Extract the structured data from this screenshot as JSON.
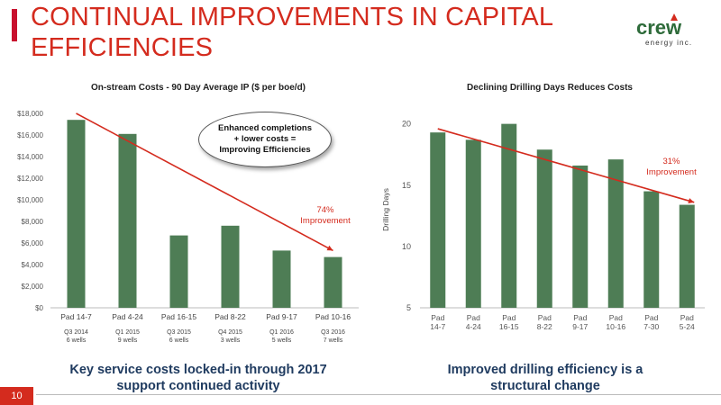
{
  "slide": {
    "title_line1": "CONTINUAL IMPROVEMENTS IN CAPITAL",
    "title_line2": "EFFICIENCIES",
    "page_number": "10",
    "logo_text": "crew",
    "logo_sub": "energy inc."
  },
  "colors": {
    "bar": "#4e7d55",
    "trend": "#d42b1e",
    "accent": "#d42b1e",
    "caption": "#1e3a5f"
  },
  "chart_data": [
    {
      "type": "bar",
      "title": "On-stream Costs - 90 Day Average IP ($ per boe/d)",
      "categories": [
        "Pad 14-7",
        "Pad 4-24",
        "Pad 16-15",
        "Pad 8-22",
        "Pad 9-17",
        "Pad 10-16"
      ],
      "sublabels": [
        [
          "Q3 2014",
          "6 wells"
        ],
        [
          "Q1 2015",
          "9 wells"
        ],
        [
          "Q3 2015",
          "6 wells"
        ],
        [
          "Q4 2015",
          "3 wells"
        ],
        [
          "Q1 2016",
          "5 wells"
        ],
        [
          "Q3 2016",
          "7 wells"
        ]
      ],
      "values": [
        17400,
        16100,
        6700,
        7600,
        5300,
        4700
      ],
      "ylim": [
        0,
        18000
      ],
      "yticks": [
        0,
        2000,
        4000,
        6000,
        8000,
        10000,
        12000,
        14000,
        16000,
        18000
      ],
      "ytick_labels": [
        "$0",
        "$2,000",
        "$4,000",
        "$6,000",
        "$8,000",
        "$10,000",
        "$12,000",
        "$14,000",
        "$16,000",
        "$18,000"
      ],
      "trend": {
        "from": 18000,
        "to": 5300
      },
      "callout": [
        "Enhanced completions",
        "+ lower costs =",
        "Improving Efficiencies"
      ],
      "improvement": [
        "74%",
        "Improvement"
      ],
      "caption": [
        "Key service costs locked-in through 2017",
        "support continued activity"
      ]
    },
    {
      "type": "bar",
      "title": "Declining Drilling Days Reduces Costs",
      "categories": [
        [
          "Pad",
          "14-7"
        ],
        [
          "Pad",
          "4-24"
        ],
        [
          "Pad",
          "16-15"
        ],
        [
          "Pad",
          "8-22"
        ],
        [
          "Pad",
          "9-17"
        ],
        [
          "Pad",
          "10-16"
        ],
        [
          "Pad",
          "7-30"
        ],
        [
          "Pad",
          "5-24"
        ]
      ],
      "values": [
        19.3,
        18.7,
        20.0,
        17.9,
        16.6,
        17.1,
        14.5,
        13.4
      ],
      "ylim": [
        5,
        21
      ],
      "yticks": [
        5,
        10,
        15,
        20
      ],
      "ylabel": "Drilling Days",
      "trend": {
        "from": 19.6,
        "to": 13.6
      },
      "improvement": [
        "31%",
        "Improvement"
      ],
      "caption": [
        "Improved drilling efficiency is a",
        "structural change"
      ]
    }
  ]
}
